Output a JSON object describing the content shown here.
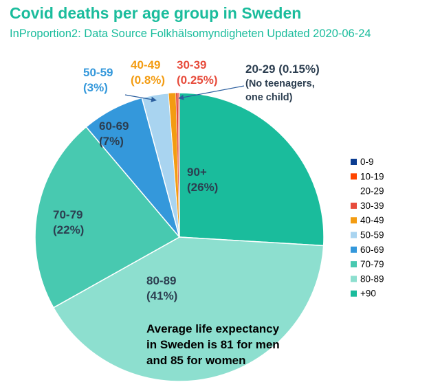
{
  "header": {
    "title": "Covid deaths per age group in Sweden",
    "subtitle": "InProportion2: Data Source Folkhälsomyndigheten Updated 2020-06-24"
  },
  "chart_data": {
    "type": "pie",
    "title": "Covid deaths per age group in Sweden",
    "subtitle": "InProportion2: Data Source Folkhälsomyndigheten Updated 2020-06-24",
    "legend_position": "right",
    "slices": [
      {
        "label": "+90",
        "value": 26,
        "color": "#1abc9c",
        "label_lines": [
          "90+",
          "(26%)"
        ],
        "label_color": "#2c3e50"
      },
      {
        "label": "80-89",
        "value": 41,
        "color": "#8ddfcf",
        "label_lines": [
          "80-89",
          "(41%)"
        ],
        "label_color": "#2c3e50"
      },
      {
        "label": "70-79",
        "value": 22,
        "color": "#48c9b0",
        "label_lines": [
          "70-79",
          "(22%)"
        ],
        "label_color": "#2c3e50"
      },
      {
        "label": "60-69",
        "value": 7,
        "color": "#3498db",
        "label_lines": [
          "60-69",
          "(7%)"
        ],
        "label_color": "#2c3e50"
      },
      {
        "label": "50-59",
        "value": 3,
        "color": "#a9d4f0",
        "label_lines": [
          "50-59",
          "(3%)"
        ],
        "label_color": "#3498db"
      },
      {
        "label": "40-49",
        "value": 0.8,
        "color": "#f39c12",
        "label_lines": [
          "40-49",
          "(0.8%)"
        ],
        "label_color": "#f39c12"
      },
      {
        "label": "30-39",
        "value": 0.25,
        "color": "#e74c3c",
        "label_lines": [
          "30-39",
          "(0.25%)"
        ],
        "label_color": "#e74c3c"
      },
      {
        "label": "20-29",
        "value": 0.15,
        "color": "#e74c3c",
        "label_lines": [
          "20-29 (0.15%)",
          "(No teenagers,",
          "one child)"
        ],
        "label_color": "#2c3e50"
      }
    ],
    "legend": [
      {
        "label": "0-9",
        "color": "#0b3d91"
      },
      {
        "label": "10-19",
        "color": "#ff4500"
      },
      {
        "label": "20-29",
        "color": ""
      },
      {
        "label": "30-39",
        "color": "#e74c3c"
      },
      {
        "label": "40-49",
        "color": "#f39c12"
      },
      {
        "label": "50-59",
        "color": "#a9d4f0"
      },
      {
        "label": "60-69",
        "color": "#3498db"
      },
      {
        "label": "70-79",
        "color": "#48c9b0"
      },
      {
        "label": "80-89",
        "color": "#8ddfcf"
      },
      {
        "label": "+90",
        "color": "#1abc9c"
      }
    ],
    "annotation": [
      "Average life expectancy",
      "in Sweden is 81 for men",
      "and 85 for women"
    ]
  }
}
